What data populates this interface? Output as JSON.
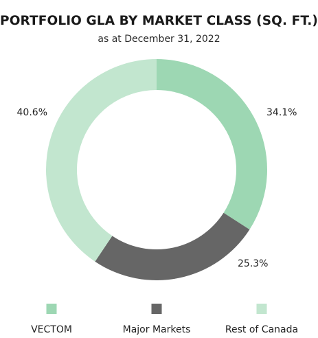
{
  "chart_data": {
    "type": "pie",
    "title": "PORTFOLIO GLA BY MARKET CLASS (SQ. FT.)",
    "subtitle": "as at December 31, 2022",
    "categories": [
      "VECTOM",
      "Major Markets",
      "Rest of Canada"
    ],
    "values": [
      34.1,
      25.3,
      40.6
    ],
    "value_labels": [
      "34.1%",
      "25.3%",
      "40.6%"
    ],
    "colors": [
      "#9dd7b3",
      "#666666",
      "#c2e6cf"
    ],
    "style": "donut",
    "legend_position": "bottom"
  }
}
